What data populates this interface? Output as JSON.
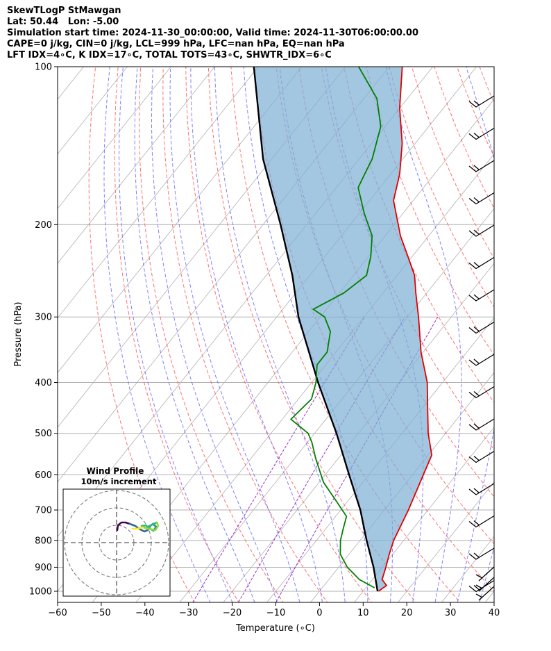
{
  "header": {
    "line1": "SkewTLogP StMawgan",
    "line2": "Lat: 50.44   Lon: -5.00",
    "line3": "Simulation start time: 2024-11-30_00:00:00, Valid time: 2024-11-30T06:00:00.00",
    "line4": "CAPE=0 j/kg, CIN=0 j/kg, LCL=999 hPa, LFC=nan hPa, EQ=nan hPa",
    "line5": "LFT IDX=4∘C, K IDX=17∘C, TOTAL TOTS=43∘C, SHWTR_IDX=6∘C"
  },
  "colors": {
    "temperature": "#e00000",
    "dewpoint": "#008000",
    "parcel": "#000000",
    "shading": "#7fb0d6",
    "dry_adiabat": "#ff6060",
    "moist_adiabat": "#6a6aff",
    "mixing_ratio": "#9a30c8",
    "isotherm": "#b0b0b0"
  },
  "chart_data": {
    "type": "line",
    "subtype": "skew-T log-P diagram",
    "xlabel": "Temperature (∘C)",
    "ylabel": "Pressure (hPa)",
    "xlim": [
      -60,
      40
    ],
    "ylim": [
      1050,
      100
    ],
    "y_scale": "log",
    "grid": true,
    "x_ticks": [
      "−60",
      "−50",
      "−40",
      "−30",
      "−20",
      "−10",
      "0",
      "10",
      "20",
      "30",
      "40"
    ],
    "y_ticks": [
      "100",
      "200",
      "300",
      "400",
      "500",
      "600",
      "700",
      "800",
      "900",
      "1000"
    ],
    "y_tick_values": [
      100,
      200,
      300,
      400,
      500,
      600,
      700,
      800,
      900,
      1000
    ],
    "series": [
      {
        "role": "temperature",
        "points": [
          [
            1000,
            13.5
          ],
          [
            975,
            14.3
          ],
          [
            950,
            12.2
          ],
          [
            900,
            10.8
          ],
          [
            850,
            9.2
          ],
          [
            800,
            7.7
          ],
          [
            700,
            5.5
          ],
          [
            600,
            2.5
          ],
          [
            550,
            0.8
          ],
          [
            500,
            -4
          ],
          [
            450,
            -8.5
          ],
          [
            400,
            -13.5
          ],
          [
            350,
            -20.5
          ],
          [
            300,
            -27.5
          ],
          [
            270,
            -32.5
          ],
          [
            250,
            -36
          ],
          [
            230,
            -41
          ],
          [
            210,
            -46.5
          ],
          [
            180,
            -54.5
          ],
          [
            160,
            -58
          ],
          [
            140,
            -63
          ],
          [
            120,
            -70
          ],
          [
            100,
            -77
          ]
        ]
      },
      {
        "role": "dewpoint",
        "points": [
          [
            985,
            12
          ],
          [
            950,
            7
          ],
          [
            900,
            2
          ],
          [
            850,
            -2
          ],
          [
            800,
            -4.5
          ],
          [
            760,
            -6
          ],
          [
            720,
            -7.5
          ],
          [
            670,
            -13
          ],
          [
            620,
            -19
          ],
          [
            560,
            -25
          ],
          [
            520,
            -29
          ],
          [
            500,
            -31.5
          ],
          [
            470,
            -38
          ],
          [
            430,
            -37
          ],
          [
            400,
            -39
          ],
          [
            370,
            -42
          ],
          [
            350,
            -42
          ],
          [
            320,
            -45
          ],
          [
            300,
            -49
          ],
          [
            290,
            -53
          ],
          [
            270,
            -49
          ],
          [
            250,
            -47
          ],
          [
            230,
            -49.5
          ],
          [
            210,
            -53
          ],
          [
            190,
            -59
          ],
          [
            170,
            -65
          ],
          [
            160,
            -66
          ],
          [
            150,
            -67
          ],
          [
            130,
            -71
          ],
          [
            115,
            -77
          ],
          [
            100,
            -87
          ]
        ]
      },
      {
        "role": "parcel",
        "points": [
          [
            1000,
            13.3
          ],
          [
            900,
            8
          ],
          [
            800,
            1.5
          ],
          [
            700,
            -5.5
          ],
          [
            600,
            -14.5
          ],
          [
            500,
            -25
          ],
          [
            400,
            -38.5
          ],
          [
            300,
            -55
          ],
          [
            250,
            -64
          ],
          [
            200,
            -76
          ],
          [
            150,
            -92
          ],
          [
            100,
            -111
          ]
        ]
      }
    ],
    "hodograph": {
      "title": "Wind Profile",
      "subtitle": "10m/s increment"
    }
  }
}
